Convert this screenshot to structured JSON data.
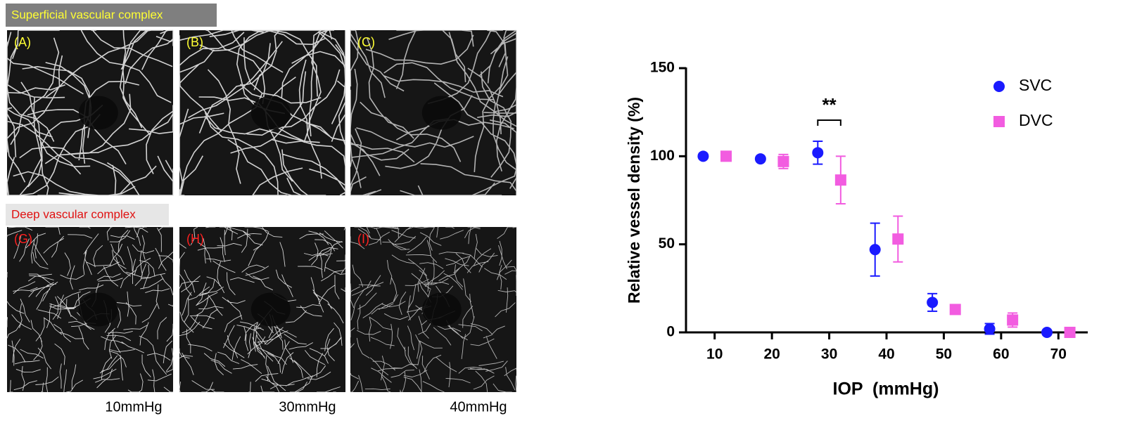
{
  "panels": {
    "superficial_title": "Superficial vascular complex",
    "deep_title": "Deep vascular complex",
    "superficial_labels": [
      "(A)",
      "(B)",
      "(C)"
    ],
    "deep_labels": [
      "(G)",
      "(H)",
      "(I)"
    ],
    "pressures": [
      "10mmHg",
      "30mmHg",
      "40mmHg"
    ]
  },
  "chart_data": {
    "type": "scatter",
    "x_label": "IOP  (mmHg)",
    "y_label": "Relative vessel density (%)",
    "xlim": [
      5,
      75
    ],
    "xticks": [
      10,
      20,
      30,
      40,
      50,
      60,
      70
    ],
    "ylim": [
      0,
      150
    ],
    "yticks": [
      0,
      50,
      100,
      150
    ],
    "grid": false,
    "legend": "upper right",
    "annotation": "**",
    "series": [
      {
        "name": "SVC",
        "color": "#1a1aff",
        "marker": "circle",
        "x": [
          8,
          18,
          28,
          38,
          48,
          58,
          68
        ],
        "values": [
          100,
          98.5,
          102,
          47,
          17,
          2,
          0
        ],
        "errors": [
          0,
          0,
          6.5,
          15,
          5,
          3,
          0
        ]
      },
      {
        "name": "DVC",
        "color": "#f25ce0",
        "marker": "square",
        "x": [
          12,
          22,
          32,
          42,
          52,
          62,
          72
        ],
        "values": [
          100,
          97,
          86.5,
          53,
          13,
          7,
          0
        ],
        "errors": [
          0,
          4,
          13.5,
          13,
          0,
          4,
          0
        ]
      }
    ]
  }
}
